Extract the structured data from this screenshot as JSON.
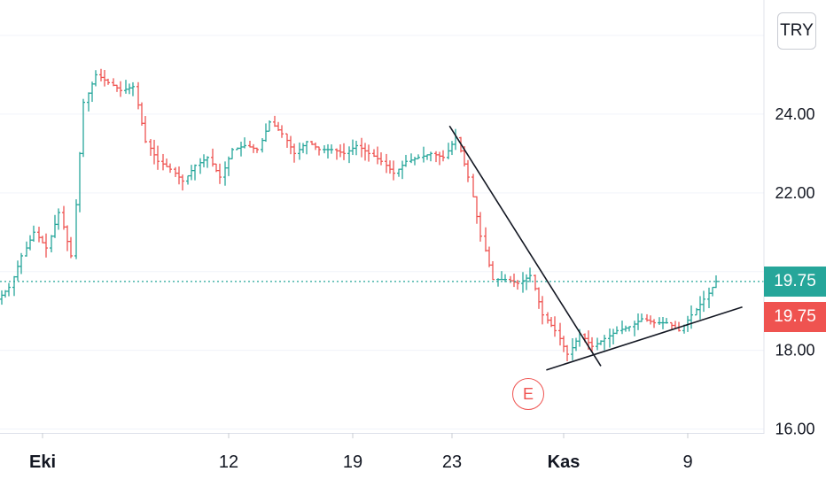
{
  "chart_data": {
    "type": "ohlc",
    "currency": "TRY",
    "y_ticks": [
      "16.00",
      "18.00",
      "22.00",
      "24.00"
    ],
    "ylim": [
      15.9,
      26.9
    ],
    "x_ticks": [
      {
        "label": "Eki",
        "index": 3,
        "bold": true
      },
      {
        "label": "12",
        "index": 18,
        "bold": false
      },
      {
        "label": "19",
        "index": 28,
        "bold": false
      },
      {
        "label": "23",
        "index": 36,
        "bold": false
      },
      {
        "label": "Kas",
        "index": 45,
        "bold": true
      },
      {
        "label": "9",
        "index": 55,
        "bold": false
      }
    ],
    "last_price": {
      "value": 19.75,
      "label": "19.75",
      "color": "#26a69a"
    },
    "prev_close": {
      "value": 19.75,
      "label": "19.75",
      "color": "#ef5350"
    },
    "earnings_marker": {
      "label": "E",
      "index": 45
    },
    "colors": {
      "up": "#26a69a",
      "down": "#ef5350"
    },
    "trendlines": [
      {
        "from": {
          "index": 35.8,
          "price": 23.7
        },
        "to": {
          "index": 48.0,
          "price": 17.6
        }
      },
      {
        "from": {
          "index": 43.6,
          "price": 17.5
        },
        "to": {
          "index": 59.4,
          "price": 19.1
        }
      }
    ],
    "closes": [
      19.6,
      20.4,
      21.0,
      20.6,
      21.5,
      20.4,
      24.3,
      25.0,
      24.8,
      24.6,
      24.7,
      23.3,
      22.8,
      22.6,
      22.3,
      22.7,
      22.9,
      22.4,
      23.1,
      23.2,
      23.1,
      23.8,
      23.5,
      23.0,
      23.3,
      23.1,
      23.1,
      23.0,
      23.2,
      23.0,
      22.8,
      22.5,
      22.8,
      22.9,
      23.0,
      22.9,
      23.4,
      22.4,
      20.9,
      19.8,
      19.8,
      19.7,
      19.9,
      18.9,
      18.5,
      17.9,
      18.4,
      18.1,
      18.3,
      18.5,
      18.6,
      18.8,
      18.7,
      18.7,
      18.5,
      18.9,
      19.3,
      19.75
    ]
  }
}
